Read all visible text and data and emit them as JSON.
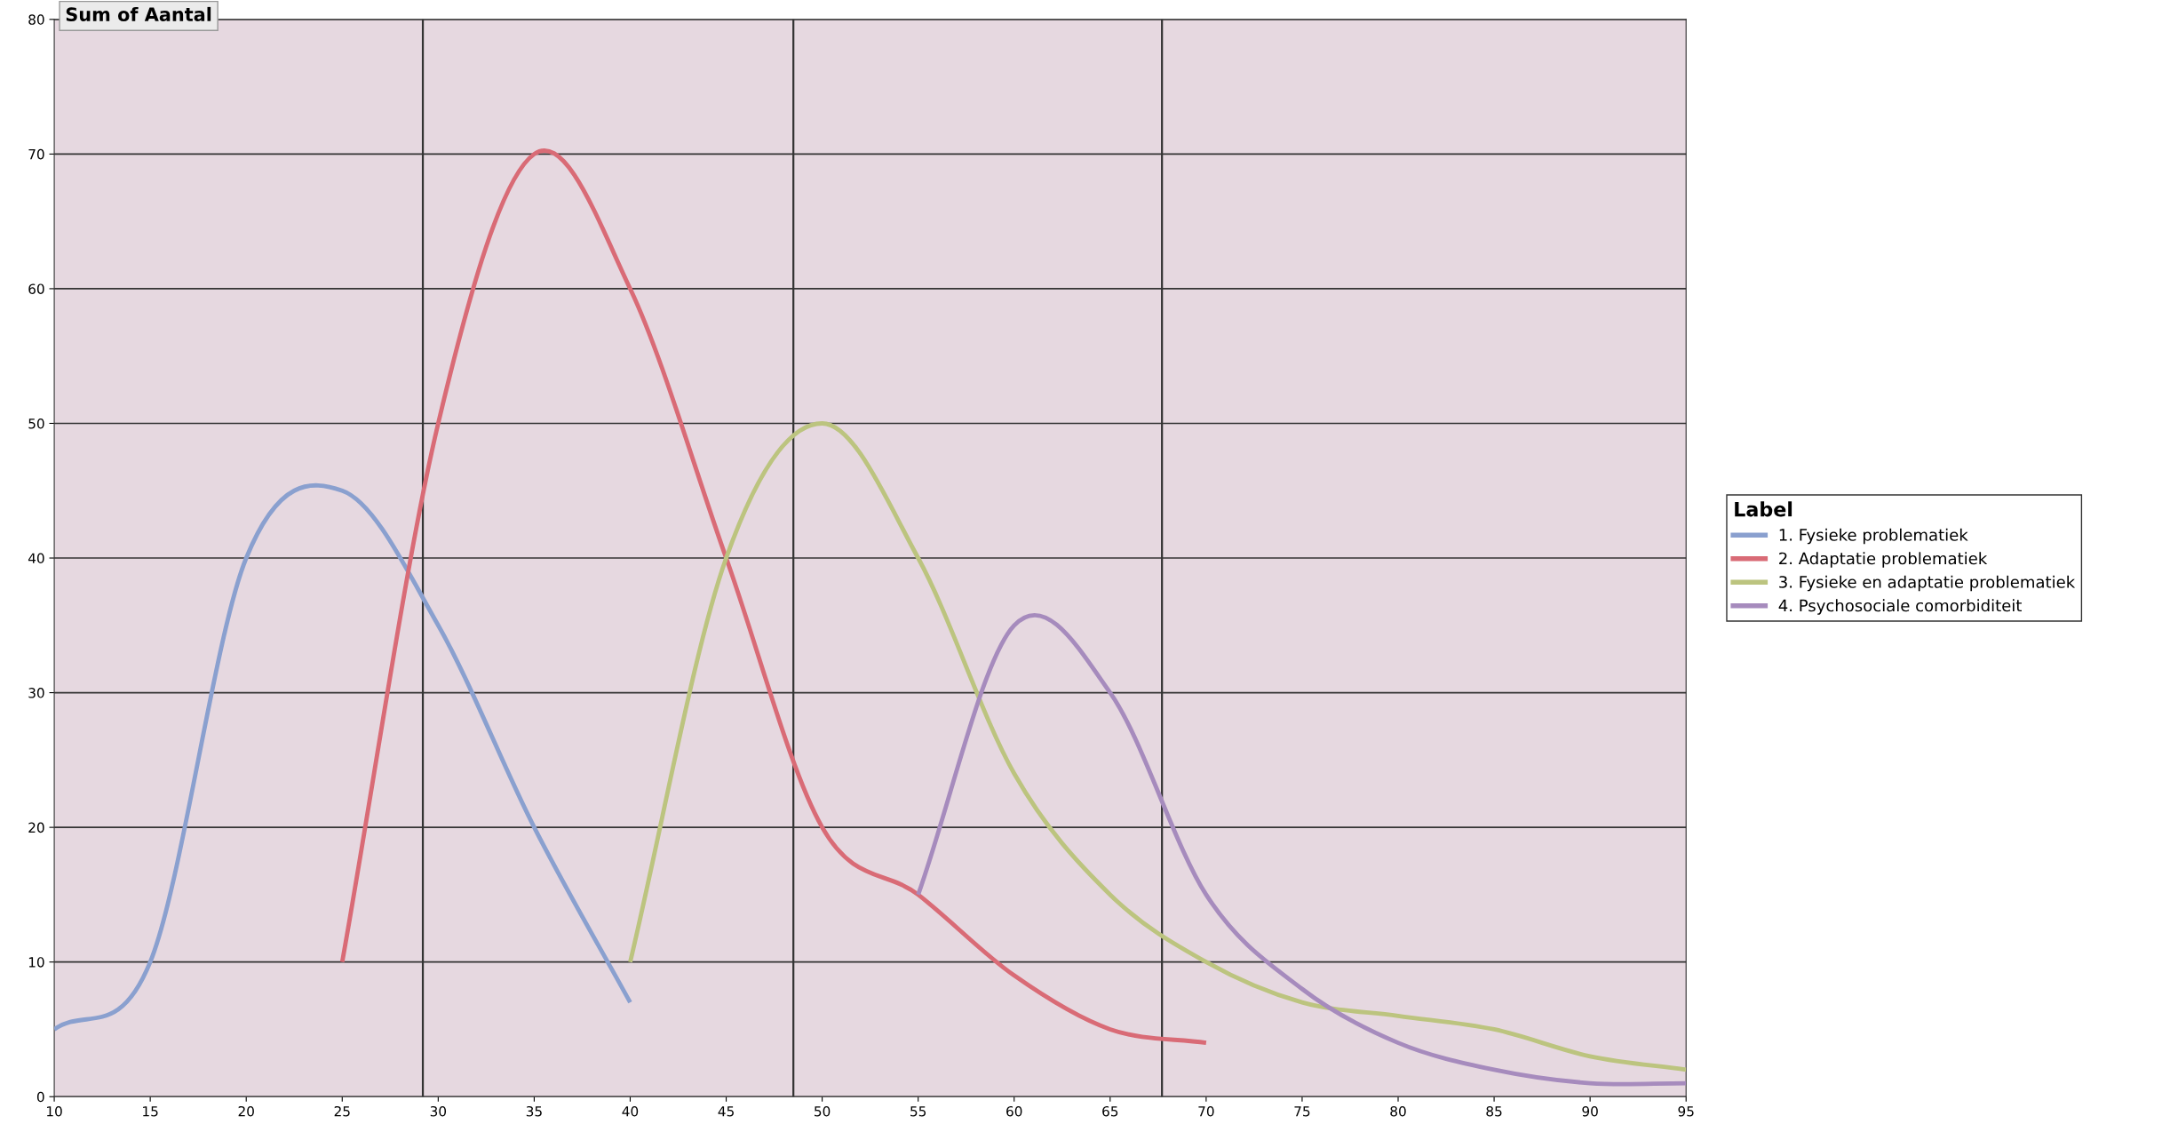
{
  "chart_data": {
    "type": "line",
    "title": "Sum of Aantal",
    "legend_title": "Label",
    "series": [
      {
        "name": "1. Fysieke problematiek",
        "color": "#8aa0cf",
        "x": [
          10,
          15,
          20,
          25,
          30,
          35,
          40
        ],
        "values": [
          5,
          10,
          40,
          45,
          35,
          20,
          7
        ]
      },
      {
        "name": "2. Adaptatie problematiek",
        "color": "#d96b76",
        "x": [
          25,
          30,
          35,
          40,
          45,
          50,
          55,
          60,
          65,
          70
        ],
        "values": [
          10,
          50,
          70,
          60,
          40,
          20,
          15,
          9,
          5,
          4
        ]
      },
      {
        "name": "3. Fysieke en adaptatie problematiek",
        "color": "#bcc47f",
        "x": [
          40,
          45,
          50,
          55,
          60,
          65,
          70,
          75,
          80,
          85,
          90,
          95
        ],
        "values": [
          10,
          40,
          50,
          40,
          24,
          15,
          10,
          7,
          6,
          5,
          3,
          2
        ]
      },
      {
        "name": "4. Psychosociale comorbiditeit",
        "color": "#a68bbd",
        "x": [
          55,
          60,
          65,
          70,
          75,
          80,
          85,
          90,
          95
        ],
        "values": [
          15,
          35,
          30,
          15,
          8,
          4,
          2,
          1,
          1
        ]
      }
    ],
    "xlim": [
      10,
      95
    ],
    "xticks": [
      10,
      15,
      20,
      25,
      30,
      35,
      40,
      45,
      50,
      55,
      60,
      65,
      70,
      75,
      80,
      85,
      90,
      95
    ],
    "ylim": [
      0,
      80
    ],
    "yticks": [
      0,
      10,
      20,
      30,
      40,
      50,
      60,
      70,
      80
    ],
    "ref_lines": [
      {
        "axis": "x",
        "value": 29.2,
        "color": "#333333"
      },
      {
        "axis": "x",
        "value": 48.5,
        "color": "#333333"
      },
      {
        "axis": "x",
        "value": 67.7,
        "color": "#333333"
      }
    ],
    "grid": "y",
    "legend": "right",
    "marker": "none",
    "line_style": "solid"
  }
}
